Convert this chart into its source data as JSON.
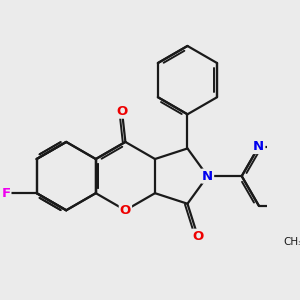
{
  "bg_color": "#ebebeb",
  "bond_color": "#1a1a1a",
  "atom_colors": {
    "F": "#ee00ee",
    "O": "#ee0000",
    "N": "#0000ee",
    "C": "#1a1a1a"
  },
  "figsize": [
    3.0,
    3.0
  ],
  "dpi": 100,
  "lw": 1.6,
  "lw2": 1.4,
  "dbo": 0.055
}
